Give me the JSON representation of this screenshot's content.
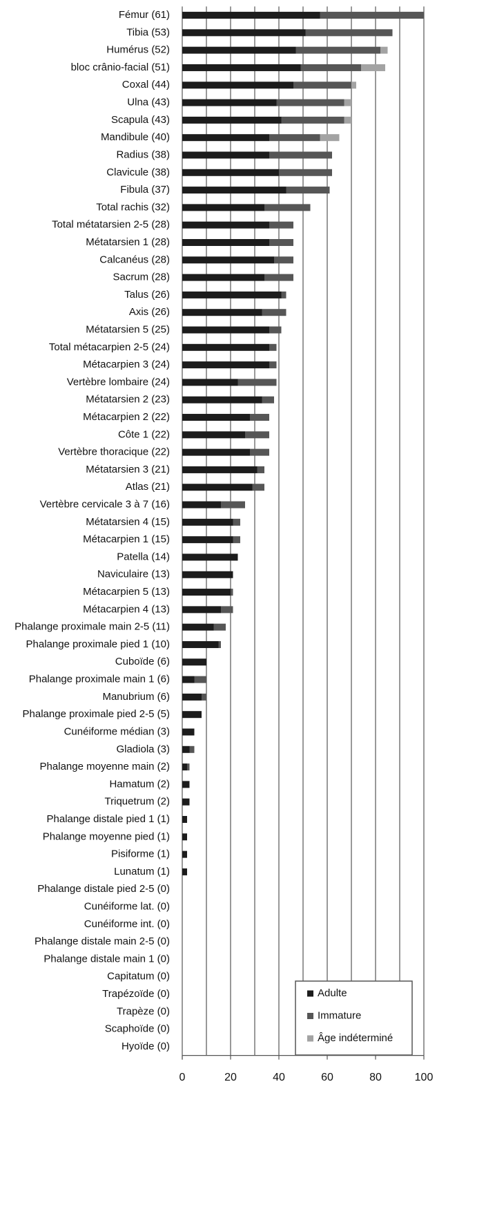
{
  "chart_data": {
    "type": "stacked-barh",
    "categories": [
      "Fémur (61)",
      "Tibia (53)",
      "Humérus (52)",
      "bloc crânio-facial (51)",
      "Coxal (44)",
      "Ulna (43)",
      "Scapula (43)",
      "Mandibule (40)",
      "Radius (38)",
      "Clavicule (38)",
      "Fibula (37)",
      "Total rachis (32)",
      "Total métatarsien 2-5 (28)",
      "Métatarsien 1 (28)",
      "Calcanéus (28)",
      "Sacrum (28)",
      "Talus (26)",
      "Axis (26)",
      "Métatarsien 5 (25)",
      "Total métacarpien 2-5 (24)",
      "Métacarpien 3 (24)",
      "Vertèbre lombaire (24)",
      "Métatarsien 2 (23)",
      "Métacarpien 2 (22)",
      "Côte 1 (22)",
      "Vertèbre thoracique (22)",
      "Métatarsien 3 (21)",
      "Atlas (21)",
      "Vertèbre cervicale 3 à 7 (16)",
      "Métatarsien 4 (15)",
      "Métacarpien 1 (15)",
      "Patella (14)",
      "Naviculaire (13)",
      "Métacarpien 5 (13)",
      "Métacarpien 4 (13)",
      "Phalange proximale main 2-5 (11)",
      "Phalange proximale pied  1 (10)",
      "Cuboïde (6)",
      "Phalange proximale main 1 (6)",
      "Manubrium (6)",
      "Phalange proximale pied 2-5 (5)",
      "Cunéiforme médian (3)",
      "Gladiola (3)",
      "Phalange moyenne main (2)",
      "Hamatum (2)",
      "Triquetrum (2)",
      "Phalange distale pied 1 (1)",
      "Phalange moyenne pied (1)",
      "Pisiforme (1)",
      "Lunatum (1)",
      "Phalange distale pied 2-5 (0)",
      "Cunéiforme lat. (0)",
      "Cunéiforme int. (0)",
      "Phalange distale main 2-5 (0)",
      "Phalange distale main 1 (0)",
      "Capitatum (0)",
      "Trapézoïde (0)",
      "Trapèze (0)",
      "Scaphoïde (0)",
      "Hyoïde (0)"
    ],
    "series": [
      {
        "name": "Adulte",
        "color": "#1c1c1c",
        "values": [
          57,
          51,
          47,
          49,
          46,
          39,
          41,
          36,
          36,
          40,
          43,
          34,
          36,
          36,
          38,
          34,
          41,
          33,
          36,
          36,
          36,
          23,
          33,
          28,
          26,
          28,
          31,
          29,
          16,
          21,
          21,
          23,
          21,
          20,
          16,
          13,
          15,
          10,
          5,
          8,
          8,
          5,
          3,
          2,
          3,
          3,
          2,
          2,
          2,
          2,
          0,
          0,
          0,
          0,
          0,
          0,
          0,
          0,
          0,
          0
        ]
      },
      {
        "name": "Immature",
        "color": "#565656",
        "values": [
          43,
          36,
          35,
          25,
          24,
          28,
          26,
          21,
          26,
          22,
          18,
          19,
          10,
          10,
          8,
          12,
          2,
          10,
          5,
          3,
          3,
          16,
          5,
          8,
          10,
          8,
          3,
          5,
          10,
          3,
          3,
          0,
          0,
          1,
          5,
          5,
          1,
          0,
          5,
          2,
          0,
          0,
          2,
          1,
          0,
          0,
          0,
          0,
          0,
          0,
          0,
          0,
          0,
          0,
          0,
          0,
          0,
          0,
          0,
          0
        ]
      },
      {
        "name": "Âge indéterminé",
        "color": "#a3a3a3",
        "values": [
          0,
          0,
          3,
          10,
          2,
          3,
          3,
          8,
          0,
          0,
          0,
          0,
          0,
          0,
          0,
          0,
          0,
          0,
          0,
          0,
          0,
          0,
          0,
          0,
          0,
          0,
          0,
          0,
          0,
          0,
          0,
          0,
          0,
          0,
          0,
          0,
          0,
          0,
          0,
          0,
          0,
          0,
          0,
          0,
          0,
          0,
          0,
          0,
          0,
          0,
          0,
          0,
          0,
          0,
          0,
          0,
          0,
          0,
          0,
          0
        ]
      }
    ],
    "xlim": [
      0,
      100
    ],
    "xticks": [
      0,
      20,
      40,
      60,
      80,
      100
    ],
    "xgrid": [
      10,
      20,
      30,
      40,
      50,
      60,
      70,
      80,
      90,
      100
    ],
    "legend": "lower-right"
  }
}
